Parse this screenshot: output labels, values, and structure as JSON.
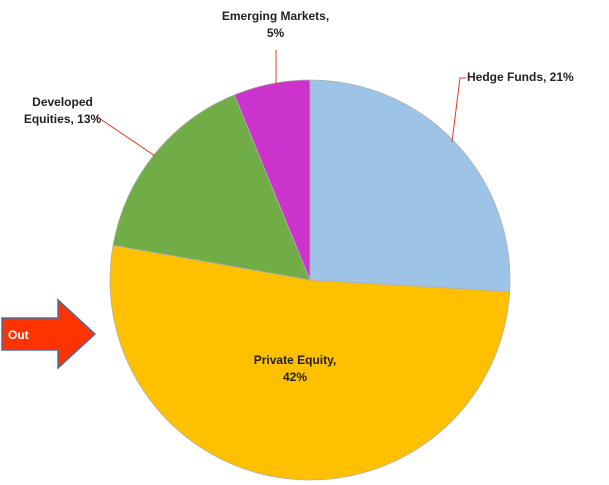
{
  "chart_data": {
    "type": "pie",
    "values": [
      21,
      42,
      13,
      5
    ],
    "value_labels": [
      "Hedge Funds, 21%",
      "Private Equity,\n42%",
      "Developed\nEquities, 13%",
      "Emerging Markets,\n5%"
    ],
    "colors": [
      "#9dc3e6",
      "#ffc000",
      "#70ad47",
      "#cc33cc"
    ],
    "annotation": "Out"
  }
}
